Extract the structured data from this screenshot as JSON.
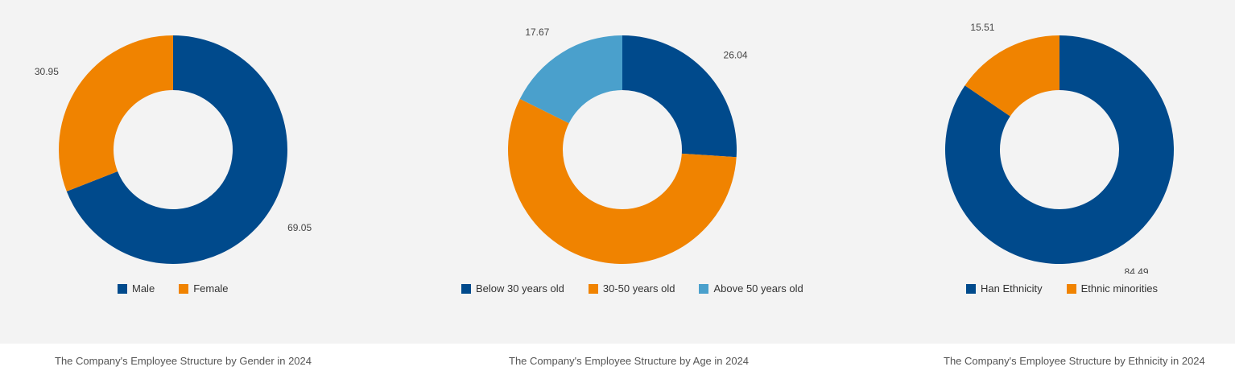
{
  "chart_data": [
    {
      "type": "pie",
      "donut": true,
      "caption": "The Company's Employee Structure by Gender in 2024",
      "slices": [
        {
          "name": "Male",
          "value": 69.05,
          "color": "#004a8c"
        },
        {
          "name": "Female",
          "value": 30.95,
          "color": "#f08300"
        }
      ]
    },
    {
      "type": "pie",
      "donut": true,
      "caption": "The Company's Employee Structure by Age in 2024",
      "slices": [
        {
          "name": "Below 30 years old",
          "value": 26.04,
          "color": "#004a8c"
        },
        {
          "name": "30-50 years old",
          "value": 56.29,
          "color": "#f08300"
        },
        {
          "name": "Above 50 years old",
          "value": 17.67,
          "color": "#4aa0cc"
        }
      ]
    },
    {
      "type": "pie",
      "donut": true,
      "caption": "The Company's Employee Structure by Ethnicity in 2024",
      "slices": [
        {
          "name": "Han Ethnicity",
          "value": 84.49,
          "color": "#004a8c"
        },
        {
          "name": "Ethnic minorities",
          "value": 15.51,
          "color": "#f08300"
        }
      ]
    }
  ]
}
